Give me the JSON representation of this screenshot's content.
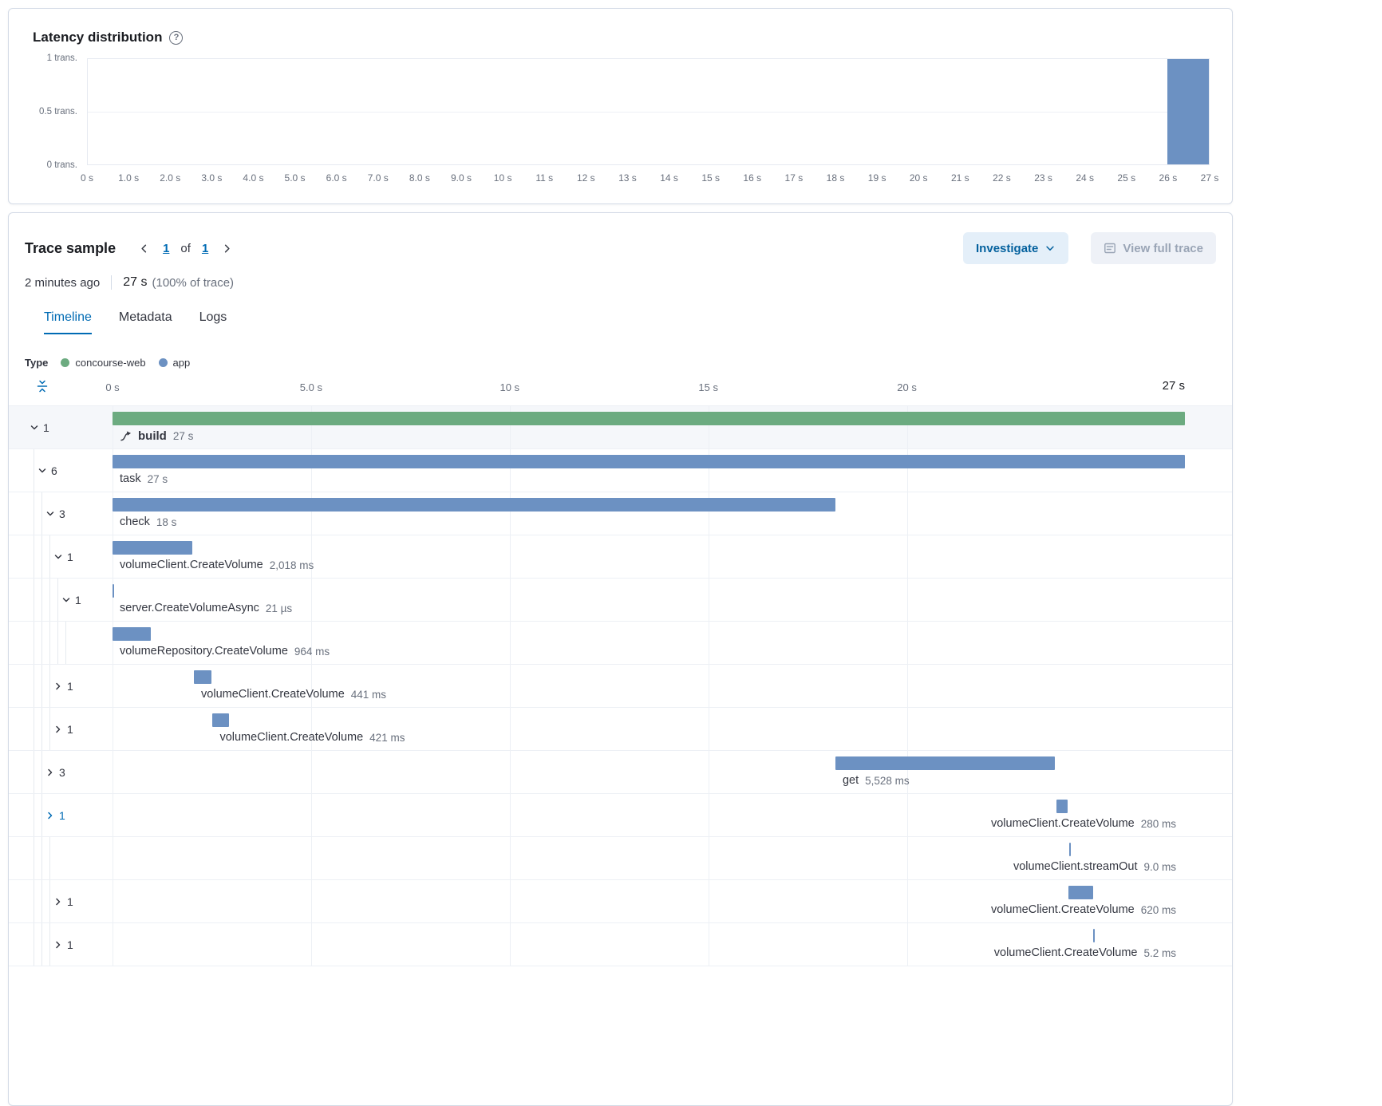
{
  "colors": {
    "bar_blue": "#6c91c2",
    "bar_green": "#6cab80",
    "accent_blue": "#006bb4",
    "text_dark": "#343741",
    "text_gray": "#69707d"
  },
  "latency": {
    "title": "Latency distribution",
    "help_icon": "question-in-circle-icon",
    "chart_data": {
      "type": "bar",
      "title": "Latency distribution",
      "ylabel": "transactions",
      "xlabel": "transaction duration",
      "ylim": [
        0,
        1
      ],
      "x_max_s": 27,
      "grid": "horizontal-only",
      "y_ticks": [
        {
          "label": "1 trans.",
          "pos_pct": 0
        },
        {
          "label": "0.5 trans.",
          "pos_pct": 50
        },
        {
          "label": "0 trans.",
          "pos_pct": 100
        }
      ],
      "x_ticks": [
        "0 s",
        "1.0 s",
        "2.0 s",
        "3.0 s",
        "4.0 s",
        "5.0 s",
        "6.0 s",
        "7.0 s",
        "8.0 s",
        "9.0 s",
        "10 s",
        "11 s",
        "12 s",
        "13 s",
        "14 s",
        "15 s",
        "16 s",
        "17 s",
        "18 s",
        "19 s",
        "20 s",
        "21 s",
        "22 s",
        "23 s",
        "24 s",
        "25 s",
        "26 s",
        "27 s"
      ],
      "buckets": [
        {
          "start_s": 26,
          "end_s": 27,
          "count": 1
        }
      ],
      "bar_color": "#6c91c2"
    }
  },
  "trace": {
    "title": "Trace sample",
    "pagination": {
      "prev_icon": "chevron-left-icon",
      "current": "1",
      "of": "of",
      "total": "1",
      "next_icon": "chevron-right-icon"
    },
    "meta": {
      "age": "2 minutes ago",
      "duration": "27 s",
      "percent": "(100% of trace)"
    },
    "actions": {
      "investigate": "Investigate",
      "investigate_icon": "chevron-down-icon",
      "view_full_trace": "View full trace",
      "view_full_trace_icon": "trace-document-icon"
    },
    "tabs": [
      {
        "label": "Timeline",
        "active": true
      },
      {
        "label": "Metadata",
        "active": false
      },
      {
        "label": "Logs",
        "active": false
      }
    ],
    "legend": {
      "label": "Type",
      "items": [
        {
          "name": "concourse-web",
          "color": "#6cab80"
        },
        {
          "name": "app",
          "color": "#6c91c2"
        }
      ]
    },
    "timeline": {
      "fold_icon": "fold-rows-icon",
      "total_s": 27,
      "axis_ticks": [
        {
          "label": "0 s",
          "s": 0
        },
        {
          "label": "5.0 s",
          "s": 5
        },
        {
          "label": "10 s",
          "s": 10
        },
        {
          "label": "15 s",
          "s": 15
        },
        {
          "label": "20 s",
          "s": 20
        },
        {
          "label": "27 s",
          "s": 27,
          "end": true
        }
      ],
      "rows": [
        {
          "count": "1",
          "chevron": "down",
          "depth": 0,
          "name": "build",
          "bold": true,
          "icon": "trace-journey-icon",
          "duration": "27 s",
          "color": "green",
          "start_s": 0,
          "dur_s": 27,
          "label_align": "left",
          "highlighted": true
        },
        {
          "count": "6",
          "chevron": "down",
          "depth": 1,
          "name": "task",
          "duration": "27 s",
          "color": "blue",
          "start_s": 0,
          "dur_s": 27,
          "label_align": "left"
        },
        {
          "count": "3",
          "chevron": "down",
          "depth": 2,
          "name": "check",
          "duration": "18 s",
          "color": "blue",
          "start_s": 0,
          "dur_s": 18.2,
          "label_align": "left"
        },
        {
          "count": "1",
          "chevron": "down",
          "depth": 3,
          "name": "volumeClient.CreateVolume",
          "duration": "2,018 ms",
          "color": "blue",
          "start_s": 0,
          "dur_s": 2.018,
          "label_align": "left"
        },
        {
          "count": "1",
          "chevron": "down",
          "depth": 4,
          "name": "server.CreateVolumeAsync",
          "duration": "21 µs",
          "color": "blue",
          "start_s": 0,
          "dur_s": 2.1e-05,
          "label_align": "left"
        },
        {
          "count": "",
          "chevron": "none",
          "depth": 5,
          "name": "volumeRepository.CreateVolume",
          "duration": "964 ms",
          "color": "blue",
          "start_s": 0,
          "dur_s": 0.964,
          "label_align": "left"
        },
        {
          "count": "1",
          "chevron": "right",
          "depth": 3,
          "name": "volumeClient.CreateVolume",
          "duration": "441 ms",
          "color": "blue",
          "start_s": 2.05,
          "dur_s": 0.441,
          "label_align": "left"
        },
        {
          "count": "1",
          "chevron": "right",
          "depth": 3,
          "name": "volumeClient.CreateVolume",
          "duration": "421 ms",
          "color": "blue",
          "start_s": 2.52,
          "dur_s": 0.421,
          "label_align": "left"
        },
        {
          "count": "3",
          "chevron": "right",
          "depth": 2,
          "name": "get",
          "duration": "5,528 ms",
          "color": "blue",
          "start_s": 18.2,
          "dur_s": 5.528,
          "label_align": "left"
        },
        {
          "count": "1",
          "chevron": "right",
          "depth": 2,
          "chevron_blue": true,
          "name": "volumeClient.CreateVolume",
          "duration": "280 ms",
          "color": "blue",
          "start_s": 23.77,
          "dur_s": 0.28,
          "label_align": "right"
        },
        {
          "count": "",
          "chevron": "none",
          "depth": 3,
          "name": "volumeClient.streamOut",
          "duration": "9.0 ms",
          "color": "blue",
          "start_s": 24.09,
          "dur_s": 0.009,
          "label_align": "right"
        },
        {
          "count": "1",
          "chevron": "right",
          "depth": 3,
          "name": "volumeClient.CreateVolume",
          "duration": "620 ms",
          "color": "blue",
          "start_s": 24.07,
          "dur_s": 0.62,
          "label_align": "right"
        },
        {
          "count": "1",
          "chevron": "right",
          "depth": 3,
          "name": "volumeClient.CreateVolume",
          "duration": "5.2 ms",
          "color": "blue",
          "start_s": 24.69,
          "dur_s": 0.0052,
          "label_align": "right"
        }
      ]
    }
  }
}
